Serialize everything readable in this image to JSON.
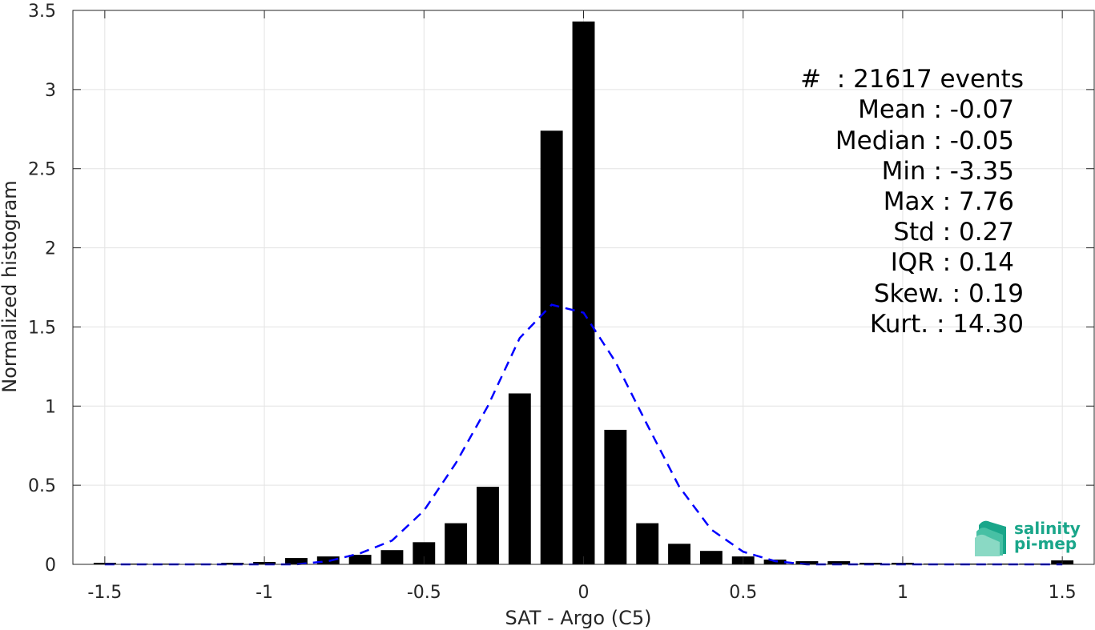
{
  "chart_data": {
    "type": "bar",
    "xlabel": "SAT - Argo (C5)",
    "ylabel": "Normalized histogram",
    "xlim": [
      -1.6,
      1.6
    ],
    "ylim": [
      0,
      3.5
    ],
    "xticks": [
      -1.5,
      -1,
      -0.5,
      0,
      0.5,
      1,
      1.5
    ],
    "xtick_labels": [
      "-1.5",
      "-1",
      "-0.5",
      "0",
      "0.5",
      "1",
      "1.5"
    ],
    "yticks": [
      0,
      0.5,
      1,
      1.5,
      2,
      2.5,
      3,
      3.5
    ],
    "ytick_labels": [
      "0",
      "0.5",
      "1",
      "1.5",
      "2",
      "2.5",
      "3",
      "3.5"
    ],
    "grid": true,
    "bar_width": 0.07,
    "bar_color": "#000000",
    "fit_color": "#0000ff",
    "series": [
      {
        "type": "bar",
        "x": [
          -1.5,
          -1.4,
          -1.3,
          -1.2,
          -1.1,
          -1.0,
          -0.9,
          -0.8,
          -0.7,
          -0.6,
          -0.5,
          -0.4,
          -0.3,
          -0.2,
          -0.1,
          0.0,
          0.1,
          0.2,
          0.3,
          0.4,
          0.5,
          0.6,
          0.7,
          0.8,
          0.9,
          1.0,
          1.1,
          1.2,
          1.3,
          1.4,
          1.5
        ],
        "values": [
          0.01,
          0.005,
          0.005,
          0.005,
          0.01,
          0.015,
          0.04,
          0.05,
          0.06,
          0.09,
          0.14,
          0.26,
          0.49,
          1.08,
          2.74,
          3.43,
          0.85,
          0.26,
          0.13,
          0.085,
          0.05,
          0.03,
          0.02,
          0.02,
          0.01,
          0.01,
          0.005,
          0.005,
          0.005,
          0.005,
          0.025
        ]
      },
      {
        "type": "line",
        "style": "dashed",
        "x": [
          -1.5,
          -1.4,
          -1.3,
          -1.2,
          -1.1,
          -1.0,
          -0.9,
          -0.8,
          -0.7,
          -0.6,
          -0.5,
          -0.4,
          -0.3,
          -0.2,
          -0.1,
          0.0,
          0.1,
          0.2,
          0.3,
          0.4,
          0.5,
          0.6,
          0.7,
          0.8,
          0.9,
          1.0,
          1.1,
          1.2,
          1.3,
          1.4,
          1.5
        ],
        "values": [
          0.0,
          0.0,
          0.0,
          0.0,
          0.0,
          0.0,
          0.0,
          0.02,
          0.07,
          0.15,
          0.34,
          0.64,
          1.0,
          1.43,
          1.64,
          1.59,
          1.28,
          0.88,
          0.49,
          0.22,
          0.08,
          0.02,
          0.0,
          0.0,
          0.0,
          0.0,
          0.0,
          0.0,
          0.0,
          0.0,
          0.0
        ]
      }
    ]
  },
  "stats": {
    "count": "#  : 21617 events",
    "mean": "Mean : -0.07",
    "median": "Median : -0.05",
    "min": "Min : -3.35",
    "max": "Max : 7.76",
    "std": "Std : 0.27",
    "iqr": "IQR : 0.14",
    "skew": "Skew. : 0.19",
    "kurt": "Kurt. : 14.30"
  },
  "logo": {
    "line1": "salinity",
    "line2": "pi-mep"
  }
}
